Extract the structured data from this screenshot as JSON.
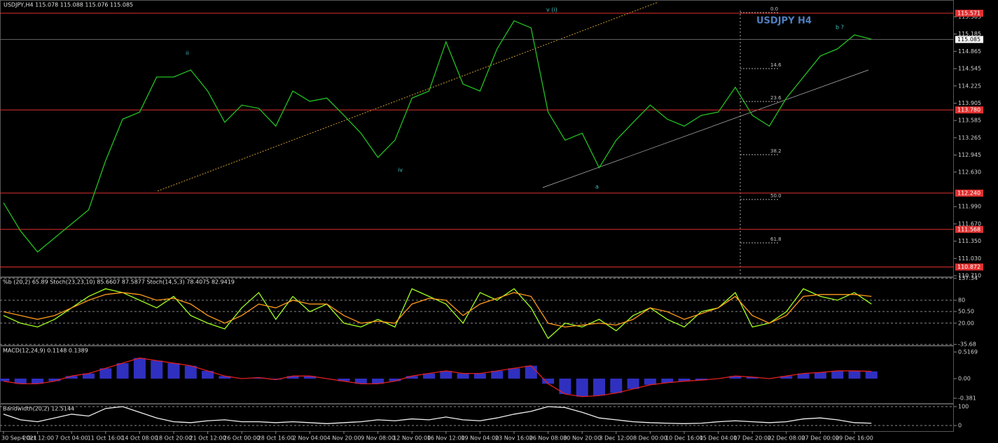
{
  "chart_data": [
    {
      "type": "line",
      "title": "USDJPY,H4  115.078 115.088 115.076 115.085",
      "label": "USDJPY H4",
      "annotations": [
        "v (i)",
        "ii",
        "iv",
        "a",
        "b ?"
      ],
      "fib_labels": [
        "0.0",
        "14.6",
        "23.6",
        "38.2",
        "50.0",
        "61.8"
      ],
      "categories": [
        "30 Sep 2021",
        null,
        "4 Oct 12:00",
        null,
        "7 Oct 04:00",
        null,
        "11 Oct 16:00",
        null,
        "14 Oct 08:00",
        null,
        "18 Oct 20:00",
        null,
        "21 Oct 12:00",
        null,
        "26 Oct 00:00",
        null,
        "28 Oct 16:00",
        null,
        "2 Nov 04:00",
        null,
        "4 Nov 20:00",
        null,
        "9 Nov 08:00",
        null,
        "12 Nov 00:00",
        null,
        "16 Nov 12:00",
        null,
        "19 Nov 04:00",
        null,
        "23 Nov 16:00",
        null,
        "26 Nov 08:00",
        null,
        "30 Nov 20:00",
        null,
        "3 Dec 12:00",
        null,
        "8 Dec 00:00",
        null,
        "10 Dec 16:00",
        null,
        "15 Dec 04:00",
        null,
        "17 Dec 20:00",
        null,
        "22 Dec 08:00",
        null,
        "27 Dec 00:00",
        null,
        "29 Dec 16:00",
        null
      ],
      "values": [
        112.06,
        111.54,
        111.15,
        111.41,
        111.67,
        111.93,
        112.84,
        113.61,
        113.74,
        114.39,
        114.39,
        114.52,
        114.13,
        113.55,
        113.87,
        113.81,
        113.48,
        114.13,
        113.94,
        114.0,
        113.68,
        113.35,
        112.9,
        113.22,
        114.0,
        114.13,
        115.04,
        114.26,
        114.13,
        114.91,
        115.43,
        115.3,
        113.74,
        113.22,
        113.35,
        112.71,
        113.22,
        113.55,
        113.87,
        113.61,
        113.48,
        113.68,
        113.74,
        114.2,
        113.68,
        113.48,
        114.0,
        114.39,
        114.78,
        114.91,
        115.17,
        115.09
      ],
      "color": "#22c022",
      "ylim": [
        110.697,
        115.816
      ],
      "yticks": [
        115.505,
        115.185,
        114.865,
        114.545,
        114.225,
        113.905,
        113.585,
        113.265,
        112.945,
        {
          "value": 112.63,
          "label": "112.630"
        },
        {
          "value": 111.99,
          "label": "111.990"
        },
        {
          "value": 111.67,
          "label": "111.670"
        },
        {
          "value": 111.35,
          "label": "111.350"
        },
        {
          "value": 111.03,
          "label": "111.030"
        },
        {
          "value": 110.71,
          "label": "110.710"
        }
      ],
      "levels": [
        115.571,
        {
          "value": 113.78,
          "label": "113.780"
        },
        {
          "value": 112.24,
          "label": "112.240"
        },
        111.568,
        110.872
      ],
      "level_color": "#e03030",
      "last": 115.085
    },
    {
      "type": "line",
      "title": "%b (20,2) 65.89  Stoch(23,23,10) 85.6607 87.5877  Stoch(14,5,3) 78.4075 82.9419",
      "series": [
        {
          "color": "#a0ff20",
          "values": [
            40,
            20,
            10,
            30,
            60,
            90,
            110,
            100,
            80,
            60,
            90,
            40,
            20,
            5,
            60,
            100,
            30,
            90,
            50,
            70,
            20,
            10,
            30,
            10,
            110,
            90,
            70,
            20,
            100,
            80,
            110,
            60,
            -20,
            20,
            10,
            30,
            0,
            40,
            60,
            30,
            10,
            50,
            60,
            100,
            10,
            20,
            50,
            110,
            90,
            80,
            100,
            70
          ]
        },
        {
          "color": "#ff9a1a",
          "values": [
            50,
            40,
            30,
            40,
            60,
            80,
            95,
            100,
            95,
            80,
            85,
            70,
            40,
            20,
            40,
            70,
            60,
            80,
            70,
            70,
            40,
            20,
            25,
            20,
            70,
            85,
            80,
            40,
            70,
            85,
            100,
            90,
            20,
            10,
            15,
            20,
            15,
            30,
            60,
            50,
            30,
            45,
            60,
            90,
            40,
            20,
            40,
            90,
            95,
            95,
            95,
            90
          ]
        }
      ],
      "ylim": [
        -37.2,
        140.4
      ],
      "yticks": [
        137.34,
        80,
        {
          "value": 50.5,
          "label": "50.50"
        },
        {
          "value": 20,
          "label": "20.00"
        },
        -35.68
      ],
      "grid": true
    },
    {
      "type": "bar",
      "title": "MACD(12,24,9) 0.1148 0.1389",
      "values": [
        -0.05,
        -0.1,
        -0.1,
        -0.05,
        0.05,
        0.1,
        0.2,
        0.3,
        0.4,
        0.35,
        0.3,
        0.25,
        0.15,
        0.05,
        0.0,
        0.02,
        -0.02,
        0.05,
        0.05,
        0.0,
        -0.05,
        -0.1,
        -0.1,
        -0.05,
        0.05,
        0.1,
        0.15,
        0.1,
        0.1,
        0.15,
        0.2,
        0.25,
        -0.1,
        -0.3,
        -0.35,
        -0.33,
        -0.28,
        -0.2,
        -0.12,
        -0.08,
        -0.05,
        -0.03,
        0.0,
        0.05,
        0.03,
        0.0,
        0.05,
        0.1,
        0.12,
        0.15,
        0.15,
        0.14
      ],
      "color": "#3030c0",
      "line_color": "#e02020",
      "ylim": [
        -0.476,
        0.639
      ],
      "yticks": [
        0.5169,
        {
          "value": 0,
          "label": "0.00"
        },
        -0.381
      ]
    },
    {
      "type": "line",
      "title": "Bandwidth(20,2) 12.5144",
      "series": [
        {
          "color": "#f0f0f0",
          "values": [
            60,
            30,
            20,
            40,
            60,
            50,
            90,
            100,
            70,
            40,
            20,
            15,
            25,
            30,
            20,
            20,
            15,
            20,
            15,
            10,
            15,
            20,
            30,
            25,
            35,
            30,
            45,
            30,
            25,
            40,
            60,
            75,
            100,
            95,
            70,
            40,
            30,
            20,
            15,
            12,
            10,
            12,
            20,
            25,
            20,
            15,
            20,
            35,
            40,
            30,
            15,
            12
          ]
        }
      ],
      "ylim": [
        -29.6,
        114.8
      ],
      "yticks": [
        100,
        0
      ],
      "grid": true
    }
  ]
}
